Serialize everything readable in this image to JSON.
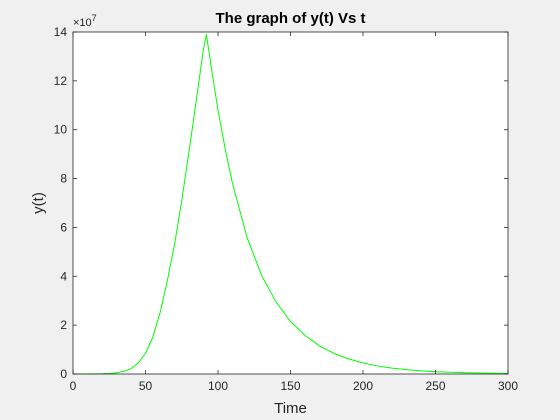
{
  "chart_data": {
    "type": "line",
    "title": "The graph of y(t) Vs t",
    "xlabel": "Time",
    "ylabel": "y(t)",
    "xlim": [
      0,
      300
    ],
    "ylim": [
      0,
      14
    ],
    "xticks": [
      "0",
      "50",
      "100",
      "150",
      "200",
      "250",
      "300"
    ],
    "yticks": [
      "0",
      "2",
      "4",
      "6",
      "8",
      "10",
      "12",
      "14"
    ],
    "y_exponent_base": "×10",
    "y_exponent_power": "7",
    "y_units_multiplier": 10000000,
    "grid": false,
    "series": [
      {
        "color": "#00ff00",
        "x": [
          0,
          10,
          20,
          25,
          30,
          35,
          40,
          45,
          50,
          55,
          60,
          65,
          70,
          75,
          80,
          85,
          90,
          92,
          95,
          100,
          105,
          110,
          120,
          130,
          140,
          150,
          160,
          170,
          180,
          190,
          200,
          210,
          220,
          230,
          240,
          250,
          260,
          270,
          280,
          290,
          300
        ],
        "y": [
          0.0,
          0.002,
          0.008,
          0.02,
          0.05,
          0.11,
          0.22,
          0.45,
          0.85,
          1.5,
          2.5,
          3.8,
          5.3,
          7.1,
          9.1,
          11.2,
          13.3,
          13.9,
          12.7,
          10.8,
          9.2,
          7.8,
          5.6,
          4.05,
          2.95,
          2.15,
          1.58,
          1.15,
          0.84,
          0.62,
          0.45,
          0.33,
          0.24,
          0.18,
          0.13,
          0.09,
          0.07,
          0.05,
          0.04,
          0.03,
          0.02
        ]
      }
    ]
  }
}
